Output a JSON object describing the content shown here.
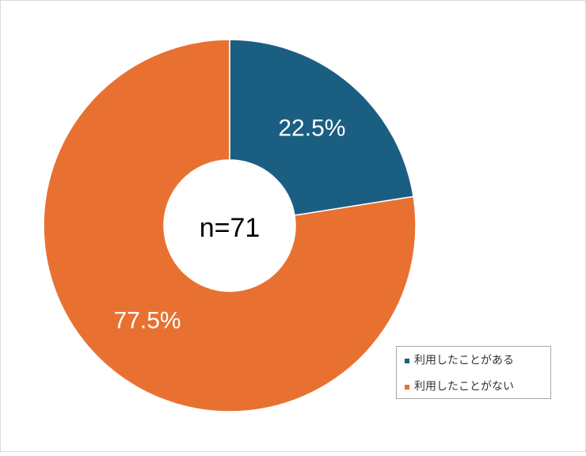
{
  "chart_data": {
    "type": "donut",
    "categories": [
      "利用したことがある",
      "利用したことがない"
    ],
    "values": [
      22.5,
      77.5
    ],
    "value_labels": [
      "22.5%",
      "77.5%"
    ],
    "colors": [
      "#1a5f82",
      "#e87131"
    ],
    "center_label": "n=71",
    "legend": "bottom-right"
  }
}
